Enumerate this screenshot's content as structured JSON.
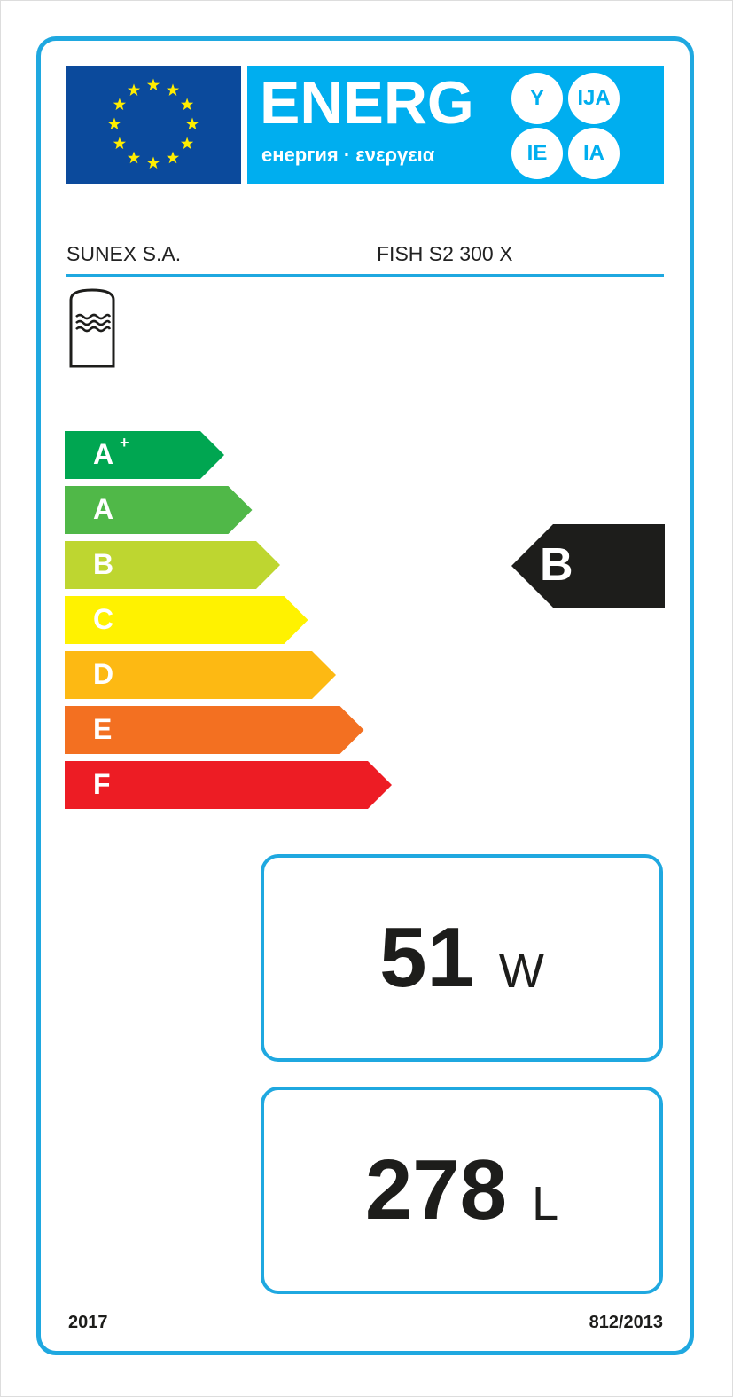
{
  "header": {
    "logo_word": "ENERG",
    "logo_sub": "енергия · ενεργεια",
    "suffixes": [
      "Y",
      "IJA",
      "IE",
      "IA"
    ],
    "flag_stars": 12
  },
  "supplier": "SUNEX S.A.",
  "model": "FISH S2 300 X",
  "appliance_icon": "water-storage-tank-icon",
  "scale": [
    {
      "label": "A",
      "sup": "+",
      "color": "#00a651"
    },
    {
      "label": "A",
      "sup": "",
      "color": "#50b848"
    },
    {
      "label": "B",
      "sup": "",
      "color": "#bed630"
    },
    {
      "label": "C",
      "sup": "",
      "color": "#fff200"
    },
    {
      "label": "D",
      "sup": "",
      "color": "#fdb913"
    },
    {
      "label": "E",
      "sup": "",
      "color": "#f37021"
    },
    {
      "label": "F",
      "sup": "",
      "color": "#ed1c24"
    }
  ],
  "rating": "B",
  "standing_loss": {
    "value": "51",
    "unit": "W"
  },
  "volume": {
    "value": "278",
    "unit": "L"
  },
  "footer": {
    "year": "2017",
    "regulation": "812/2013"
  }
}
